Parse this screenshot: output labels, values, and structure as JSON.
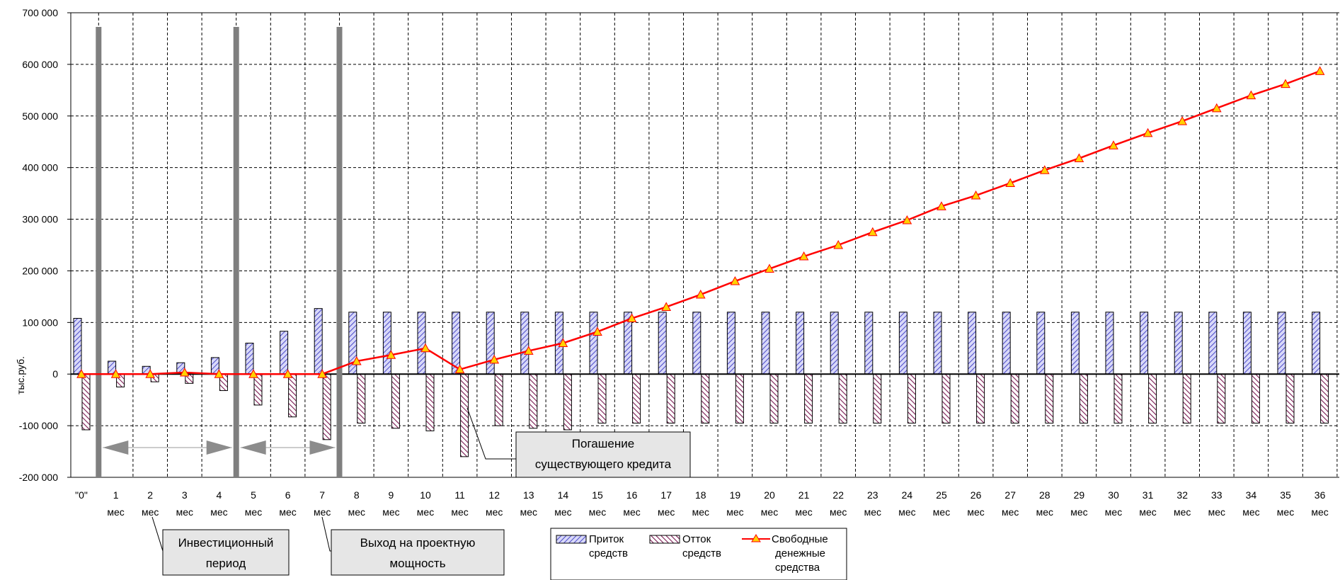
{
  "chart_data": {
    "type": "bar",
    "ylabel": "тыс.руб.",
    "ylim": [
      -200000,
      700000
    ],
    "ytick_labels": [
      "700 000",
      "600 000",
      "500 000",
      "400 000",
      "300 000",
      "200 000",
      "100 000",
      "0",
      "-100 000",
      "-200 000"
    ],
    "yticks": [
      700000,
      600000,
      500000,
      400000,
      300000,
      200000,
      100000,
      0,
      -100000,
      -200000
    ],
    "categories_top": [
      "\"0\"",
      "1",
      "2",
      "3",
      "4",
      "5",
      "6",
      "7",
      "8",
      "9",
      "10",
      "11",
      "12",
      "13",
      "14",
      "15",
      "16",
      "17",
      "18",
      "19",
      "20",
      "21",
      "22",
      "23",
      "24",
      "25",
      "26",
      "27",
      "28",
      "29",
      "30",
      "31",
      "32",
      "33",
      "34",
      "35",
      "36"
    ],
    "categories_bottom": [
      "",
      "мес",
      "мес",
      "мес",
      "мес",
      "мес",
      "мес",
      "мес",
      "мес",
      "мес",
      "мес",
      "мес",
      "мес",
      "мес",
      "мес",
      "мес",
      "мес",
      "мес",
      "мес",
      "мес",
      "мес",
      "мес",
      "мес",
      "мес",
      "мес",
      "мес",
      "мес",
      "мес",
      "мес",
      "мес",
      "мес",
      "мес",
      "мес",
      "мес",
      "мес",
      "мес",
      "мес"
    ],
    "grid": true,
    "legend_position": "bottom",
    "series": [
      {
        "name": "Приток средств",
        "kind": "bar",
        "color": "#5b5bd6",
        "values": [
          108000,
          25000,
          15000,
          22000,
          32000,
          60000,
          83000,
          127000,
          120000,
          120000,
          120000,
          120000,
          120000,
          120000,
          120000,
          120000,
          120000,
          120000,
          120000,
          120000,
          120000,
          120000,
          120000,
          120000,
          120000,
          120000,
          120000,
          120000,
          120000,
          120000,
          120000,
          120000,
          120000,
          120000,
          120000,
          120000,
          120000
        ]
      },
      {
        "name": "Отток средств",
        "kind": "bar",
        "color": "#8b1c5c",
        "values": [
          -108000,
          -25000,
          -15000,
          -18000,
          -32000,
          -60000,
          -83000,
          -127000,
          -95000,
          -105000,
          -110000,
          -160000,
          -100000,
          -105000,
          -108000,
          -95000,
          -95000,
          -95000,
          -95000,
          -95000,
          -95000,
          -95000,
          -95000,
          -95000,
          -95000,
          -95000,
          -95000,
          -95000,
          -95000,
          -95000,
          -95000,
          -95000,
          -95000,
          -95000,
          -95000,
          -95000,
          -95000
        ]
      },
      {
        "name": "Свободные денежные средства",
        "kind": "line",
        "color": "#ff0000",
        "marker_color": "#ffd200",
        "values": [
          0,
          0,
          0,
          3000,
          0,
          0,
          0,
          0,
          25000,
          37000,
          50000,
          9000,
          28000,
          45000,
          60000,
          82000,
          108000,
          130000,
          154000,
          180000,
          204000,
          228000,
          250000,
          275000,
          298000,
          325000,
          346000,
          370000,
          395000,
          418000,
          443000,
          467000,
          490000,
          515000,
          540000,
          562000,
          587000
        ]
      }
    ],
    "legend": {
      "inflow_line1": "Приток",
      "inflow_line2": "средств",
      "outflow_line1": "Отток",
      "outflow_line2": "средств",
      "free_line1": "Свободные",
      "free_line2": "денежные",
      "free_line3": "средства"
    },
    "annotations": {
      "repayment_line1": "Погашение",
      "repayment_line2": "существующего кредита",
      "investment_line1": "Инвестиционный",
      "investment_line2": "период",
      "capacity_line1": "Выход на проектную",
      "capacity_line2": "мощность"
    }
  }
}
